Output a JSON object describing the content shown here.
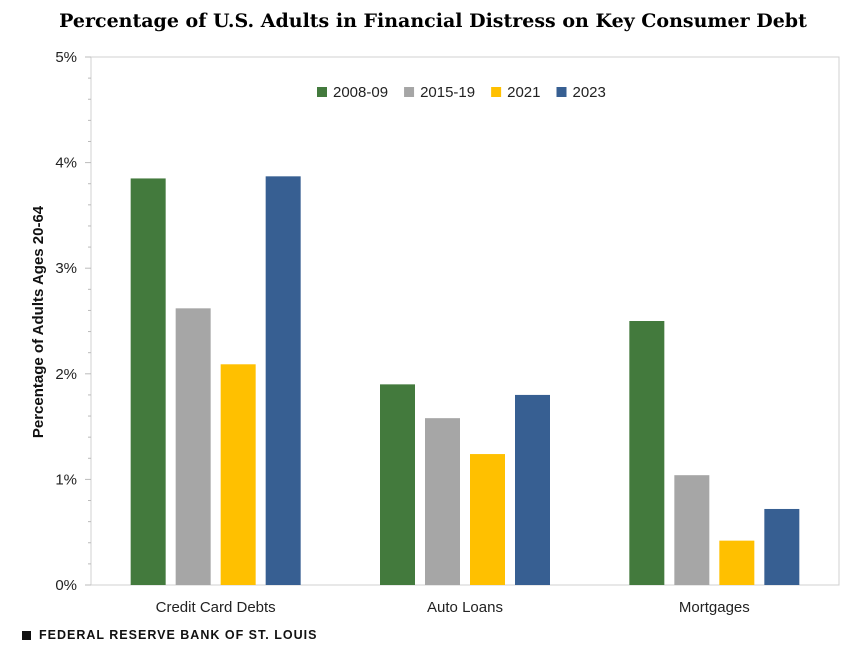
{
  "footer": {
    "source": "FEDERAL RESERVE BANK OF ST. LOUIS"
  },
  "chart_data": {
    "type": "bar",
    "title": "Percentage of U.S. Adults in Financial Distress on Key Consumer Debt",
    "xlabel": "",
    "ylabel": "Percentage of Adults Ages 20-64",
    "ylim": [
      0,
      5
    ],
    "yticks": [
      "0%",
      "1%",
      "2%",
      "3%",
      "4%",
      "5%"
    ],
    "grid": false,
    "legend_position": "top-center",
    "categories": [
      "Credit Card Debts",
      "Auto Loans",
      "Mortgages"
    ],
    "series": [
      {
        "name": "2008-09",
        "color": "#437a3d",
        "values": [
          3.85,
          1.9,
          2.5
        ]
      },
      {
        "name": "2015-19",
        "color": "#a6a6a6",
        "values": [
          2.62,
          1.58,
          1.04
        ]
      },
      {
        "name": "2021",
        "color": "#ffc000",
        "values": [
          2.09,
          1.24,
          0.42
        ]
      },
      {
        "name": "2023",
        "color": "#375f92",
        "values": [
          3.87,
          1.8,
          0.72
        ]
      }
    ]
  }
}
